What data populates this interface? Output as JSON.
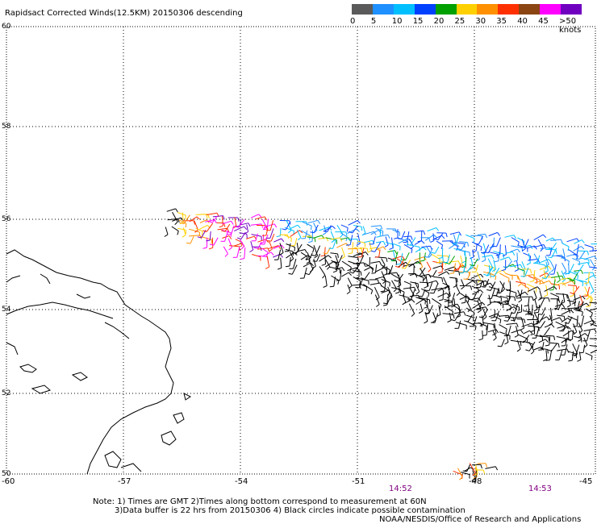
{
  "title": "Rapidsact Corrected Winds(12.5KM) 20150306 descending",
  "colorbar": {
    "colors": [
      "#5a5a5a",
      "#1e90ff",
      "#00bfff",
      "#0040ff",
      "#00a000",
      "#ffd000",
      "#ff9000",
      "#ff3000",
      "#8b4513",
      "#ff00ff",
      "#7000c0"
    ],
    "labels": [
      "0",
      "5",
      "10",
      "15",
      "20",
      "25",
      "30",
      "35",
      "40",
      "45",
      ">50 knots"
    ]
  },
  "axes": {
    "lon_labels": [
      "-60",
      "-57",
      "-54",
      "-51",
      "-48",
      "-45"
    ],
    "lat_labels": [
      "60",
      "58",
      "56",
      "54",
      "52",
      "50"
    ]
  },
  "times": [
    "14:52",
    "14:53"
  ],
  "notes": {
    "line1": "Note: 1) Times are GMT 2)Times along bottom correspond to measurement at 60N",
    "line2": "3)Data buffer is 22 hrs from 20150306 4) Black circles indicate possible contamination",
    "line3": "NOAA/NESDIS/Office of Research and Applications"
  }
}
